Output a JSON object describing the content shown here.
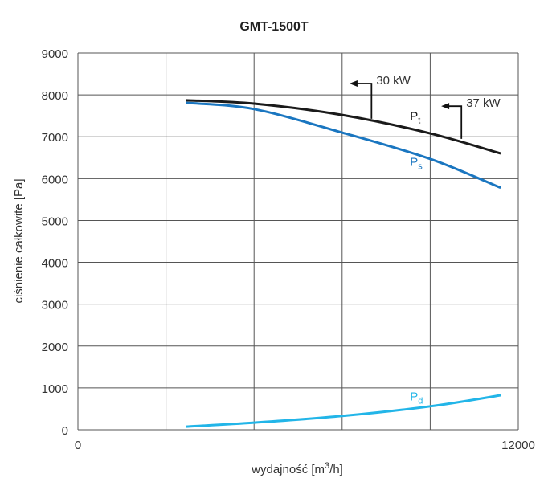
{
  "chart_data": {
    "type": "line",
    "title": "GMT-1500T",
    "xlabel": "wydajność [m³/h]",
    "xlabel_parts": [
      "wydajność [m",
      "3",
      "/h]"
    ],
    "ylabel": "ciśnienie całkowite [Pa]",
    "xlim": [
      0,
      12000
    ],
    "ylim": [
      0,
      9000
    ],
    "x_tick_labels": [
      "0",
      "12000"
    ],
    "x_grid": [
      0,
      2400,
      4800,
      7200,
      9600,
      12000
    ],
    "y_ticks": [
      0,
      1000,
      2000,
      3000,
      4000,
      5000,
      6000,
      7000,
      8000,
      9000
    ],
    "grid": true,
    "series": [
      {
        "name": "Pt",
        "label_main": "P",
        "label_sub": "t",
        "color": "#1a1a1a",
        "x": [
          2950,
          4800,
          7200,
          9600,
          11520
        ],
        "y": [
          7870,
          7790,
          7520,
          7080,
          6600
        ],
        "label_at": [
          9050,
          7400
        ]
      },
      {
        "name": "Ps",
        "label_main": "P",
        "label_sub": "s",
        "color": "#1a76c0",
        "x": [
          2950,
          4800,
          7200,
          9600,
          11520
        ],
        "y": [
          7810,
          7660,
          7100,
          6470,
          5780
        ],
        "label_at": [
          9050,
          6300
        ]
      },
      {
        "name": "Pd",
        "label_main": "P",
        "label_sub": "d",
        "color": "#22b5e8",
        "x": [
          2950,
          4800,
          7200,
          9600,
          11520
        ],
        "y": [
          75,
          170,
          330,
          560,
          825
        ],
        "label_at": [
          9050,
          700
        ]
      }
    ],
    "annotations": [
      {
        "text": "30 kW",
        "x": 8000,
        "y_from": 7430,
        "y_to": 8270,
        "arrow_to_x": 7400
      },
      {
        "text": "37 kW",
        "x": 10450,
        "y_from": 6950,
        "y_to": 7730,
        "arrow_to_x": 9900
      }
    ]
  }
}
